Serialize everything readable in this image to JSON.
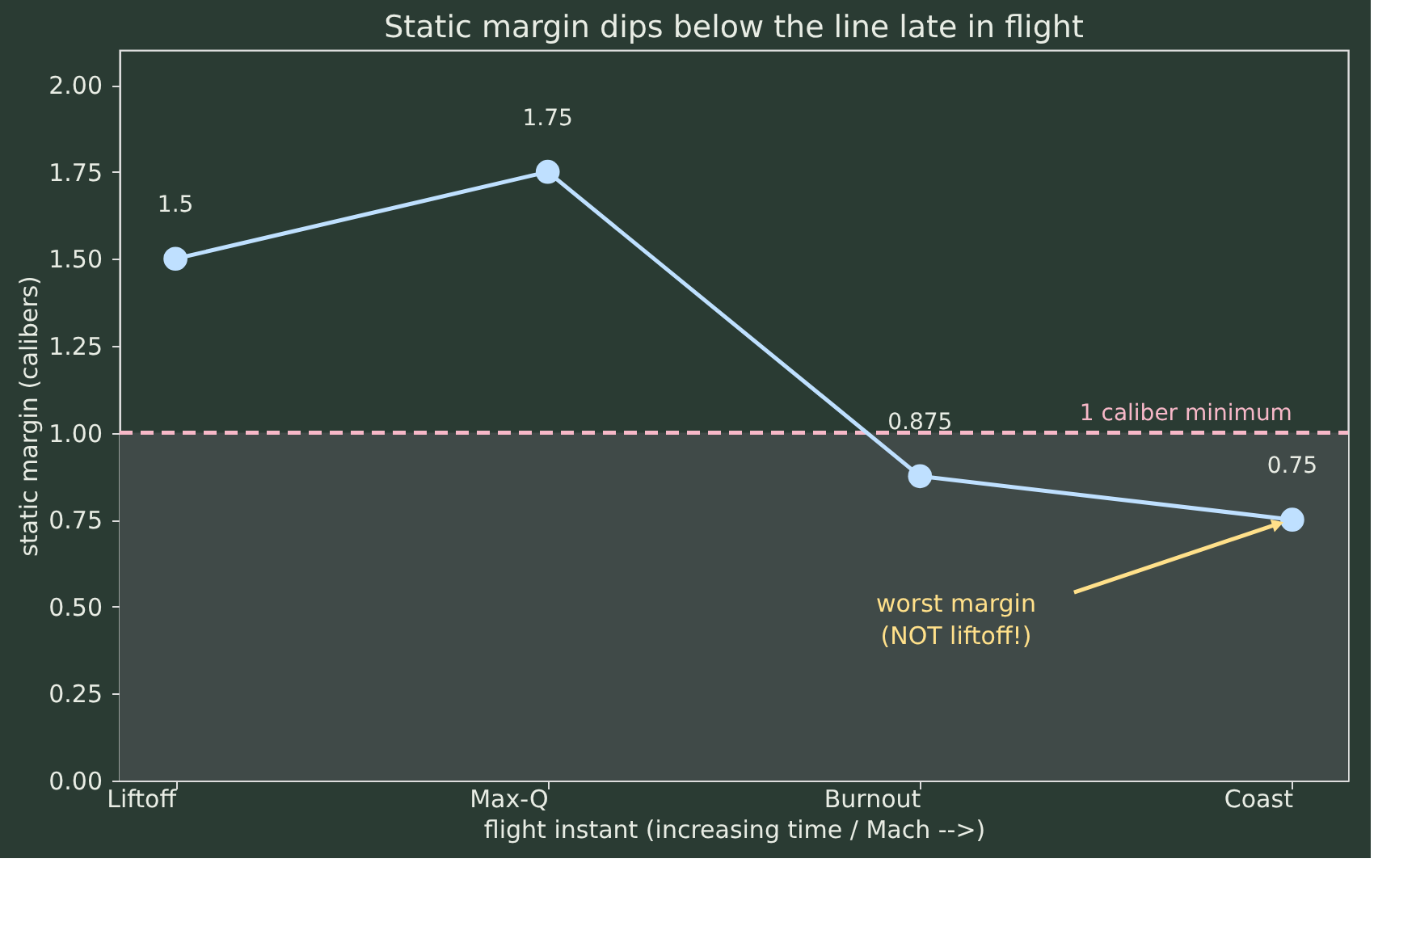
{
  "chart_data": {
    "type": "line",
    "title": "Static margin dips below the line late in flight",
    "xlabel": "flight instant (increasing time / Mach -->)",
    "ylabel": "static margin (calibers)",
    "categories": [
      "Liftoff",
      "Max-Q",
      "Burnout",
      "Coast"
    ],
    "series": [
      {
        "color": "#bfe0ff",
        "values": [
          1.5,
          1.75,
          0.875,
          0.75
        ]
      }
    ],
    "data_labels": true,
    "marker": "circle",
    "line_style": "solid",
    "grid": false,
    "legend": false,
    "ylim": [
      0,
      2.1
    ],
    "yticks": [
      {
        "value": 0,
        "label": "0.00"
      },
      {
        "value": 0.25,
        "label": "0.25"
      },
      {
        "value": 0.5,
        "label": "0.50"
      },
      {
        "value": 0.75,
        "label": "0.75"
      },
      {
        "value": 1,
        "label": "1.00"
      },
      {
        "value": 1.25,
        "label": "1.25"
      },
      {
        "value": 1.5,
        "label": "1.50"
      },
      {
        "value": 1.75,
        "label": "1.75"
      },
      {
        "value": 2,
        "label": "2.00"
      }
    ],
    "ref_lines": [
      {
        "axis": "y",
        "value": 1,
        "label": "1 caliber minimum",
        "color": "#f7b8c8",
        "line_style": "dashed"
      }
    ],
    "bands": [
      {
        "axis": "y",
        "from": 0,
        "to": 1,
        "color": "#404a48"
      }
    ],
    "annotations": [
      "worst margin\n(NOT liftoff!)"
    ]
  }
}
